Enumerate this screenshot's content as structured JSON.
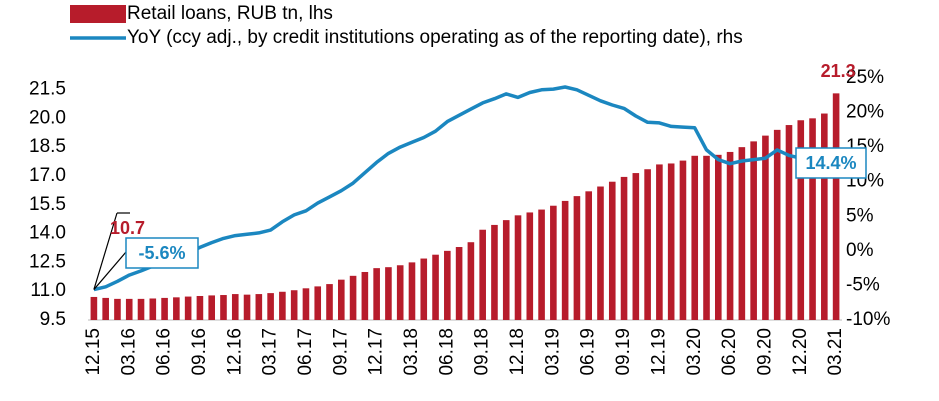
{
  "chart_data": {
    "type": "bar",
    "categories": [
      "12.15",
      null,
      null,
      "03.16",
      null,
      null,
      "06.16",
      null,
      null,
      "09.16",
      null,
      null,
      "12.16",
      null,
      null,
      "03.17",
      null,
      null,
      "06.17",
      null,
      null,
      "09.17",
      null,
      null,
      "12.17",
      null,
      null,
      "03.18",
      null,
      null,
      "06.18",
      null,
      null,
      "09.18",
      null,
      null,
      "12.18",
      null,
      null,
      "03.19",
      null,
      null,
      "06.19",
      null,
      null,
      "09.19",
      null,
      null,
      "12.19",
      null,
      null,
      "03.20",
      null,
      null,
      "06.20",
      null,
      null,
      "09.20",
      null,
      null,
      "12.20",
      null,
      null,
      "03.21"
    ],
    "series": [
      {
        "name": "Retail loans, RUB tn, lhs",
        "type": "bar",
        "color": "#b71c2b",
        "values": [
          10.7,
          10.65,
          10.6,
          10.6,
          10.6,
          10.62,
          10.65,
          10.68,
          10.72,
          10.75,
          10.78,
          10.8,
          10.85,
          10.82,
          10.85,
          10.9,
          10.97,
          11.05,
          11.15,
          11.25,
          11.37,
          11.6,
          11.8,
          12.0,
          12.2,
          12.25,
          12.35,
          12.5,
          12.7,
          12.9,
          13.1,
          13.3,
          13.55,
          14.2,
          14.45,
          14.7,
          14.95,
          15.1,
          15.25,
          15.45,
          15.7,
          15.95,
          16.2,
          16.45,
          16.7,
          16.95,
          17.15,
          17.35,
          17.6,
          17.65,
          17.8,
          18.05,
          18.05,
          18.1,
          18.25,
          18.5,
          18.8,
          19.1,
          19.4,
          19.65,
          19.9,
          20.0,
          20.25,
          21.3
        ],
        "value_labels": [
          "10.7",
          null,
          null,
          null,
          null,
          null,
          null,
          null,
          null,
          null,
          null,
          null,
          null,
          null,
          null,
          null,
          null,
          null,
          null,
          null,
          null,
          null,
          null,
          null,
          null,
          null,
          null,
          null,
          null,
          null,
          null,
          null,
          null,
          null,
          null,
          null,
          null,
          null,
          null,
          null,
          null,
          null,
          null,
          null,
          null,
          null,
          null,
          null,
          null,
          null,
          null,
          null,
          null,
          null,
          null,
          null,
          null,
          null,
          null,
          null,
          null,
          null,
          null,
          "21.3"
        ]
      },
      {
        "name": "YoY (ccy adj., by credit institutions operating as of the reporting date), rhs",
        "type": "line",
        "axis": "y2",
        "color": "#1b87c0",
        "values": [
          -5.6,
          -5.2,
          -4.4,
          -3.5,
          -2.9,
          -2.2,
          -1.6,
          -1.0,
          -0.3,
          0.5,
          1.2,
          1.8,
          2.2,
          2.4,
          2.6,
          3.0,
          4.2,
          5.2,
          5.8,
          6.9,
          7.8,
          8.7,
          9.8,
          11.3,
          12.8,
          14.1,
          15.0,
          15.7,
          16.4,
          17.3,
          18.7,
          19.6,
          20.5,
          21.4,
          22.0,
          22.7,
          22.2,
          22.9,
          23.3,
          23.4,
          23.7,
          23.3,
          22.5,
          21.7,
          21.1,
          20.6,
          19.5,
          18.6,
          18.5,
          18.0,
          17.9,
          17.8,
          14.6,
          13.2,
          12.6,
          13.0,
          13.2,
          13.4,
          14.6,
          13.8,
          13.4,
          13.3,
          13.6,
          14.4
        ],
        "value_labels": [
          "-5.6%",
          null,
          null,
          null,
          null,
          null,
          null,
          null,
          null,
          null,
          null,
          null,
          null,
          null,
          null,
          null,
          null,
          null,
          null,
          null,
          null,
          null,
          null,
          null,
          null,
          null,
          null,
          null,
          null,
          null,
          null,
          null,
          null,
          null,
          null,
          null,
          null,
          null,
          null,
          null,
          null,
          null,
          null,
          null,
          null,
          null,
          null,
          null,
          null,
          null,
          null,
          null,
          null,
          null,
          null,
          null,
          null,
          null,
          null,
          null,
          null,
          null,
          null,
          "14.4%"
        ]
      }
    ],
    "ylim": [
      9.5,
      22.1
    ],
    "yticks": [
      9.5,
      {
        "value": 11,
        "label": "11.0"
      },
      12.5,
      {
        "value": 14,
        "label": "14.0"
      },
      15.5,
      {
        "value": 17,
        "label": "17.0"
      },
      18.5,
      {
        "value": 20,
        "label": "20.0"
      },
      21.5
    ],
    "y2lim": [
      -10,
      25
    ],
    "y2ticks": [
      {
        "value": -10,
        "label": "-10%"
      },
      {
        "value": -5,
        "label": "-5%"
      },
      {
        "value": 0,
        "label": "0%"
      },
      {
        "value": 5,
        "label": "5%"
      },
      {
        "value": 10,
        "label": "10%"
      },
      {
        "value": 15,
        "label": "15%"
      },
      {
        "value": 20,
        "label": "20%"
      },
      {
        "value": 25,
        "label": "25%"
      }
    ],
    "grid": false
  }
}
